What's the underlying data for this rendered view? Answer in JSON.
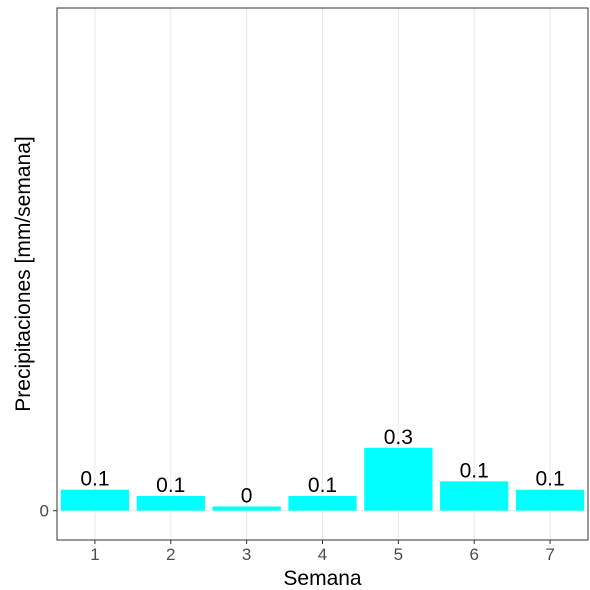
{
  "chart_data": {
    "type": "bar",
    "categories": [
      "1",
      "2",
      "3",
      "4",
      "5",
      "6",
      "7"
    ],
    "values": [
      0.1,
      0.07,
      0.02,
      0.07,
      0.3,
      0.14,
      0.1
    ],
    "data_labels": [
      "0.1",
      "0.1",
      "0",
      "0.1",
      "0.3",
      "0.1",
      "0.1"
    ],
    "xlabel": "Semana",
    "ylabel": "Precipitaciones [mm/semana]",
    "y_ticks": [
      {
        "value": 0,
        "label": "0"
      }
    ],
    "ylim": [
      -0.14,
      2.4
    ],
    "bar_color": "#00FFFF",
    "grid": true,
    "legend": "none"
  }
}
